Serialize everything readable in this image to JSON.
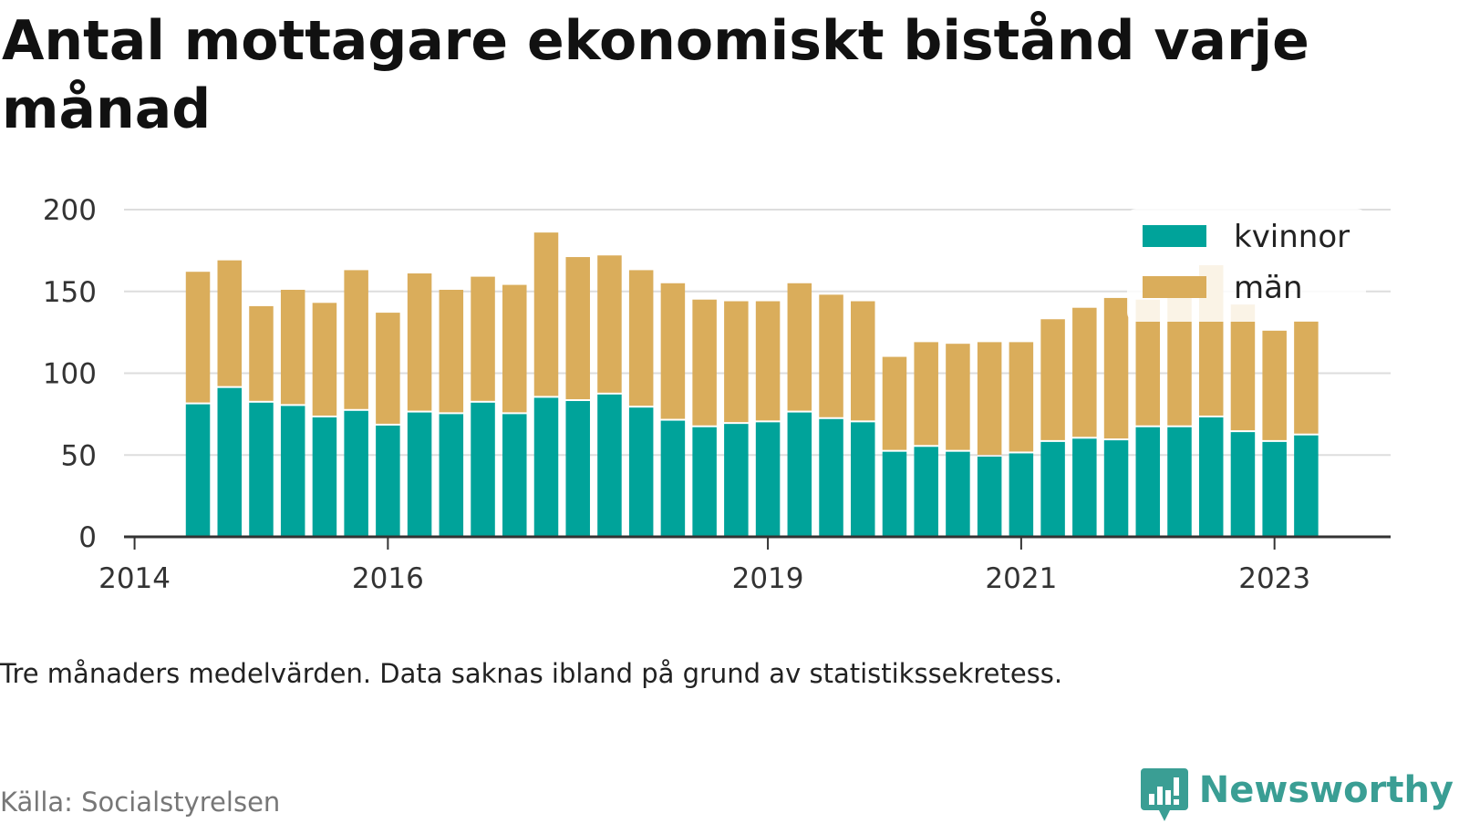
{
  "title": "Antal mottagare ekonomiskt bistånd varje månad",
  "note": "Tre månaders medelvärden. Data saknas ibland på grund av statistikssekretess.",
  "source": "Källa: Socialstyrelsen",
  "brand": {
    "name": "Newsworthy",
    "icon": "newsworthy-logo-icon",
    "color": "#3a9e94"
  },
  "colors": {
    "kvinnor": "#00a39a",
    "man": "#daad5b",
    "grid": "#dddddd",
    "axis": "#333333"
  },
  "chart_data": {
    "type": "bar",
    "stacked": true,
    "x_axis": {
      "type": "date",
      "ticks": [
        "2014",
        "2016",
        "2019",
        "2021",
        "2023"
      ],
      "range": [
        "2013-12",
        "2023-12"
      ]
    },
    "y_axis": {
      "ticks": [
        0,
        50,
        100,
        150,
        200
      ],
      "range": [
        0,
        200
      ]
    },
    "grid": true,
    "legend": {
      "position": "top-right",
      "entries": [
        "kvinnor",
        "män"
      ]
    },
    "x": [
      "2014-07",
      "2014-10",
      "2015-01",
      "2015-04",
      "2015-07",
      "2015-10",
      "2016-01",
      "2016-04",
      "2016-07",
      "2016-10",
      "2017-01",
      "2017-04",
      "2017-07",
      "2017-10",
      "2018-01",
      "2018-04",
      "2018-07",
      "2018-10",
      "2019-01",
      "2019-04",
      "2019-07",
      "2019-10",
      "2020-01",
      "2020-04",
      "2020-07",
      "2020-10",
      "2021-01",
      "2021-04",
      "2021-07",
      "2021-10",
      "2022-01",
      "2022-04",
      "2022-07",
      "2022-10",
      "2023-01",
      "2023-04"
    ],
    "series": [
      {
        "name": "kvinnor",
        "values": [
          81,
          91,
          82,
          80,
          73,
          77,
          68,
          76,
          75,
          82,
          75,
          85,
          83,
          87,
          79,
          71,
          67,
          69,
          70,
          76,
          72,
          70,
          52,
          55,
          52,
          49,
          51,
          58,
          60,
          59,
          67,
          67,
          73,
          64,
          58,
          62
        ]
      },
      {
        "name": "män",
        "values": [
          81,
          78,
          59,
          71,
          70,
          86,
          69,
          85,
          76,
          77,
          79,
          101,
          88,
          85,
          84,
          84,
          78,
          75,
          74,
          79,
          76,
          74,
          58,
          64,
          66,
          70,
          68,
          75,
          80,
          87,
          78,
          86,
          93,
          78,
          68,
          70
        ]
      }
    ]
  }
}
